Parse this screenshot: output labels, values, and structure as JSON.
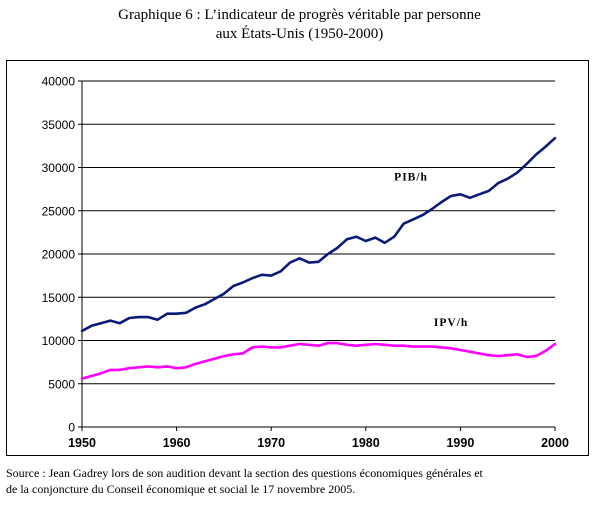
{
  "title": {
    "line1": "Graphique 6 : L’indicateur de progrès véritable par personne",
    "line2": "aux États-Unis (1950-2000)"
  },
  "source": {
    "line1": "Source : Jean Gadrey lors de son audition devant la section des questions économiques générales et",
    "line2": "de la conjoncture du Conseil économique et social le 17 novembre 2005."
  },
  "chart_data": {
    "type": "line",
    "title": "",
    "xlabel": "",
    "ylabel": "",
    "xlim": [
      1950,
      2000
    ],
    "ylim": [
      0,
      40000
    ],
    "x_ticks": [
      1950,
      1960,
      1970,
      1980,
      1990,
      2000
    ],
    "y_ticks": [
      0,
      5000,
      10000,
      15000,
      20000,
      25000,
      30000,
      35000,
      40000
    ],
    "grid": "horizontal",
    "legend": "none",
    "x": [
      1950,
      1951,
      1952,
      1953,
      1954,
      1955,
      1956,
      1957,
      1958,
      1959,
      1960,
      1961,
      1962,
      1963,
      1964,
      1965,
      1966,
      1967,
      1968,
      1969,
      1970,
      1971,
      1972,
      1973,
      1974,
      1975,
      1976,
      1977,
      1978,
      1979,
      1980,
      1981,
      1982,
      1983,
      1984,
      1985,
      1986,
      1987,
      1988,
      1989,
      1990,
      1991,
      1992,
      1993,
      1994,
      1995,
      1996,
      1997,
      1998,
      1999,
      2000
    ],
    "series": [
      {
        "name": "PIB/h",
        "color": "#0b1a78",
        "values": [
          11100,
          11700,
          12000,
          12300,
          12000,
          12600,
          12700,
          12700,
          12400,
          13100,
          13100,
          13200,
          13800,
          14200,
          14800,
          15400,
          16300,
          16700,
          17200,
          17600,
          17500,
          18000,
          19000,
          19500,
          19000,
          19100,
          20000,
          20700,
          21700,
          22000,
          21500,
          21900,
          21300,
          22000,
          23500,
          24000,
          24500,
          25200,
          26000,
          26700,
          26900,
          26500,
          26900,
          27300,
          28200,
          28700,
          29400,
          30400,
          31500,
          32400,
          33400
        ]
      },
      {
        "name": "IPV/h",
        "color": "#ff00ff",
        "values": [
          5600,
          5900,
          6200,
          6600,
          6600,
          6800,
          6900,
          7000,
          6900,
          7000,
          6800,
          6900,
          7300,
          7600,
          7900,
          8200,
          8400,
          8500,
          9200,
          9300,
          9200,
          9200,
          9400,
          9600,
          9500,
          9400,
          9700,
          9700,
          9500,
          9400,
          9500,
          9600,
          9500,
          9400,
          9400,
          9300,
          9300,
          9300,
          9200,
          9100,
          8900,
          8700,
          8500,
          8300,
          8200,
          8300,
          8400,
          8100,
          8200,
          8800,
          9600
        ]
      }
    ]
  }
}
